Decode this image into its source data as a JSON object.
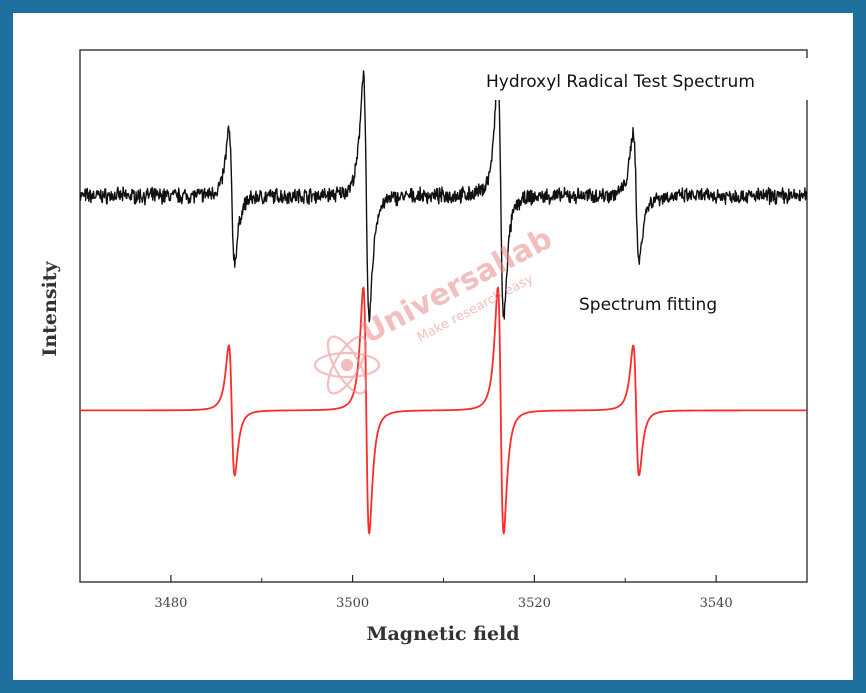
{
  "chart_data": {
    "type": "line",
    "title": "",
    "xlabel": "Magnetic field",
    "ylabel": "Intensity",
    "xlim": [
      3470,
      3550
    ],
    "xticks": [
      3480,
      3500,
      3520,
      3540
    ],
    "ylim": [
      -1.6,
      1.5
    ],
    "grid": false,
    "annotations": [
      "Hydroxyl Radical Test Spectrum",
      "Spectrum fitting"
    ],
    "colors": {
      "experimental": "#111111",
      "fitting": "#ff2b2b",
      "frame": "#1f6f9f"
    },
    "lines": [
      {
        "center": 3486.7,
        "amplitude": 0.45
      },
      {
        "center": 3501.5,
        "amplitude": 0.85
      },
      {
        "center": 3516.3,
        "amplitude": 0.85
      },
      {
        "center": 3531.2,
        "amplitude": 0.45
      }
    ],
    "linewidth": 0.55,
    "series": [
      {
        "key": "experimental",
        "offset": 0.65,
        "noise": 0.035
      },
      {
        "key": "fitting",
        "offset": -0.6,
        "noise": 0
      }
    ]
  },
  "watermark": {
    "name": "Universallab",
    "tagline": "Make research easy"
  }
}
